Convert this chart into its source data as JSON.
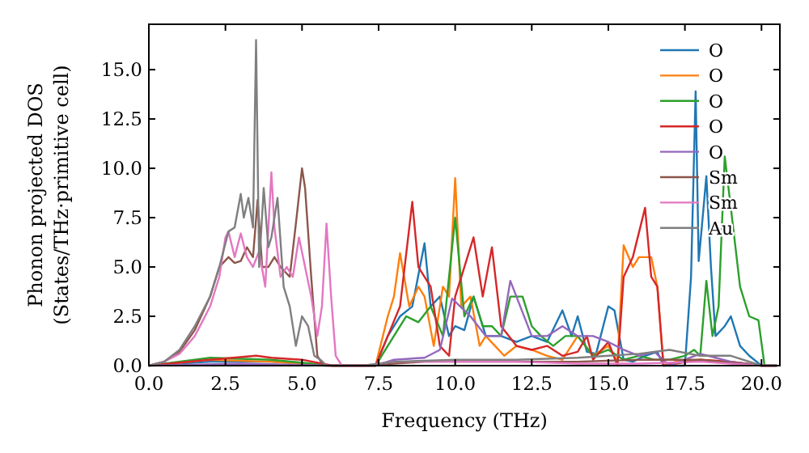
{
  "chart_data": {
    "type": "line",
    "xlabel": "Frequency (THz)",
    "ylabel": "Phonon projected DOS\n(States/THz·primitive cell)",
    "xlim": [
      0,
      20.6
    ],
    "ylim": [
      0,
      17.3
    ],
    "xticks": [
      {
        "value": 0,
        "label": "0.0"
      },
      2.5,
      {
        "value": 5,
        "label": "5.0"
      },
      7.5,
      {
        "value": 10,
        "label": "10.0"
      },
      12.5,
      {
        "value": 15,
        "label": "15.0"
      },
      17.5,
      {
        "value": 20,
        "label": "20.0"
      }
    ],
    "yticks": [
      {
        "value": 0,
        "label": "0.0"
      },
      2.5,
      {
        "value": 5,
        "label": "5.0"
      },
      7.5,
      {
        "value": 10,
        "label": "10.0"
      },
      12.5,
      {
        "value": 15,
        "label": "15.0"
      }
    ],
    "legend": "top right",
    "grid": false,
    "line_style": "solid",
    "series": [
      {
        "name": "O",
        "color": "#1f77b4",
        "x": [
          0,
          2,
          4,
          6,
          7.4,
          7.8,
          8.2,
          8.6,
          9.0,
          9.2,
          9.5,
          9.8,
          10.0,
          10.3,
          10.6,
          11,
          11.5,
          12,
          12.5,
          13,
          13.5,
          13.8,
          14,
          14.3,
          14.6,
          15,
          15.2,
          15.5,
          15.8,
          16.2,
          16.6,
          16.8,
          17.2,
          17.5,
          17.7,
          17.85,
          17.95,
          18.05,
          18.2,
          18.35,
          18.5,
          18.8,
          19.0,
          19.3,
          19.6,
          20.0,
          20.5
        ],
        "values": [
          0,
          0.2,
          0.2,
          0,
          0,
          1.5,
          2.5,
          3,
          6.2,
          3,
          3.5,
          1.5,
          2,
          1.8,
          3.5,
          1.5,
          1.5,
          1.2,
          1.5,
          1.2,
          2.8,
          1.5,
          2.5,
          0.7,
          0.6,
          3,
          2.8,
          0.3,
          0.2,
          0.5,
          0.7,
          0,
          0,
          0,
          4.5,
          13.9,
          5.3,
          7,
          9.6,
          5,
          1.5,
          2,
          2.5,
          1,
          0.5,
          0,
          0
        ]
      },
      {
        "name": "O",
        "color": "#ff7f0e",
        "x": [
          0,
          2,
          4,
          6,
          7.4,
          7.8,
          8.0,
          8.2,
          8.5,
          8.8,
          9.0,
          9.3,
          9.6,
          9.8,
          10.0,
          10.2,
          10.5,
          10.8,
          11.0,
          11.3,
          11.6,
          12,
          12.5,
          13,
          13.5,
          14,
          14.5,
          15,
          15.3,
          15.5,
          15.8,
          16.0,
          16.4,
          16.6,
          16.8,
          17.2,
          18,
          19,
          20,
          20.5
        ],
        "values": [
          0,
          0.3,
          0.2,
          0,
          0,
          2.5,
          3.5,
          5.7,
          3,
          4,
          3.5,
          1,
          4,
          3.5,
          9.5,
          3,
          3.5,
          1,
          1.5,
          1,
          0.5,
          1,
          0.8,
          0.5,
          0.3,
          1.5,
          0.5,
          1,
          0.2,
          6.1,
          5,
          5.5,
          5.5,
          4,
          0,
          0.2,
          0.3,
          0.2,
          0,
          0
        ]
      },
      {
        "name": "O",
        "color": "#2ca02c",
        "x": [
          0,
          2,
          4,
          6,
          7.4,
          8.0,
          8.4,
          8.8,
          9.2,
          9.6,
          10.0,
          10.3,
          10.6,
          10.9,
          11.2,
          11.5,
          11.8,
          12.2,
          12.5,
          12.8,
          13.2,
          13.6,
          14,
          14.5,
          15,
          15.5,
          16,
          16.5,
          17,
          17.5,
          17.8,
          18.0,
          18.2,
          18.4,
          18.6,
          18.8,
          19.0,
          19.3,
          19.6,
          19.9,
          20.1,
          20.5
        ],
        "values": [
          0,
          0.4,
          0.3,
          0,
          0,
          1.5,
          2.5,
          2.2,
          3,
          1.5,
          7.5,
          2.5,
          3.5,
          2,
          2,
          1.5,
          3.5,
          3.5,
          2,
          1.5,
          1,
          1.5,
          1.5,
          0.5,
          0.8,
          0.3,
          0.5,
          0.3,
          0.3,
          0.5,
          0.8,
          0.5,
          4.3,
          1.5,
          3,
          10.6,
          8,
          4,
          2.5,
          2.3,
          0,
          0
        ]
      },
      {
        "name": "O",
        "color": "#d62728",
        "x": [
          0,
          2,
          3.5,
          4,
          5,
          6,
          7.4,
          7.8,
          8.2,
          8.6,
          8.8,
          9.2,
          9.5,
          9.8,
          10.0,
          10.3,
          10.6,
          10.9,
          11.2,
          11.5,
          12,
          12.5,
          13,
          13.5,
          14,
          14.3,
          14.5,
          15,
          15.3,
          15.5,
          15.8,
          16.2,
          16.4,
          16.6,
          16.8,
          17.2,
          18,
          19,
          20,
          20.5
        ],
        "values": [
          0,
          0.3,
          0.5,
          0.4,
          0.3,
          0,
          0,
          1.5,
          3,
          8.3,
          5,
          4,
          1,
          0.5,
          3.5,
          5,
          6.5,
          3.5,
          6,
          2,
          1,
          0.8,
          1,
          0.5,
          0.7,
          1.5,
          0.3,
          1.2,
          0,
          4.5,
          5.5,
          8,
          4.5,
          4,
          0,
          0.1,
          0.3,
          0.2,
          0,
          0
        ]
      },
      {
        "name": "O",
        "color": "#9467bd",
        "x": [
          0,
          3,
          6,
          7.4,
          8,
          9,
          9.5,
          9.9,
          10.5,
          11,
          11.5,
          11.8,
          12.5,
          13,
          13.5,
          14,
          14.5,
          15,
          15.5,
          16,
          16.5,
          17,
          17.5,
          18,
          18.5,
          19,
          20,
          20.5
        ],
        "values": [
          0,
          0.1,
          0,
          0,
          0.3,
          0.4,
          0.8,
          3.4,
          2.5,
          1.5,
          1.5,
          4.3,
          1.5,
          1.5,
          2,
          1.5,
          1.5,
          1.2,
          0.8,
          0.5,
          0.7,
          0,
          0.3,
          0.6,
          0.4,
          0.2,
          0,
          0
        ]
      },
      {
        "name": "Sm",
        "color": "#8c564b",
        "x": [
          0,
          0.5,
          1,
          1.5,
          2,
          2.3,
          2.6,
          2.8,
          3.0,
          3.2,
          3.4,
          3.55,
          3.7,
          3.9,
          4.1,
          4.3,
          4.6,
          4.8,
          5.0,
          5.1,
          5.3,
          5.5,
          5.7,
          6,
          7,
          8,
          9,
          10,
          12,
          14,
          16,
          18,
          20,
          20.5
        ],
        "values": [
          0,
          0.2,
          0.7,
          1.8,
          3.5,
          5,
          5.5,
          5.2,
          5.3,
          6,
          5.5,
          8.4,
          5,
          5,
          5.5,
          5,
          4.5,
          7.2,
          10,
          9,
          4.5,
          0.5,
          0,
          0,
          0,
          0.1,
          0.2,
          0.2,
          0.2,
          0.2,
          0.3,
          0.3,
          0,
          0
        ]
      },
      {
        "name": "Sm",
        "color": "#e377c2",
        "x": [
          0,
          0.5,
          1,
          1.5,
          2,
          2.3,
          2.5,
          2.6,
          2.8,
          3.0,
          3.2,
          3.4,
          3.6,
          3.8,
          4.0,
          4.1,
          4.3,
          4.5,
          4.7,
          4.9,
          5.1,
          5.3,
          5.5,
          5.65,
          5.8,
          5.95,
          6.1,
          6.3,
          7,
          8,
          10,
          12,
          14,
          16,
          18,
          20,
          20.5
        ],
        "values": [
          0,
          0.2,
          0.6,
          1.5,
          3,
          4.5,
          6.5,
          6.8,
          5.5,
          6.7,
          5.5,
          5,
          5.8,
          4,
          9.8,
          7,
          4.5,
          5,
          4.5,
          6.5,
          5,
          3.5,
          1.5,
          3,
          7.2,
          3.5,
          0.5,
          0,
          0,
          0.2,
          0.2,
          0.2,
          0.1,
          0.1,
          0.2,
          0,
          0
        ]
      },
      {
        "name": "Au",
        "color": "#7f7f7f",
        "x": [
          0,
          0.5,
          1,
          1.5,
          2,
          2.3,
          2.6,
          2.8,
          3.0,
          3.1,
          3.25,
          3.4,
          3.5,
          3.6,
          3.75,
          3.9,
          4.0,
          4.2,
          4.4,
          4.6,
          4.8,
          5.0,
          5.2,
          5.4,
          5.6,
          5.8,
          6.0,
          7,
          8,
          10,
          12,
          14,
          16,
          17,
          18,
          19,
          20,
          20.5
        ],
        "values": [
          0,
          0.2,
          0.8,
          2,
          3.5,
          5,
          6.8,
          7,
          8.7,
          7.5,
          8.5,
          7,
          16.5,
          5,
          9,
          6,
          6.5,
          8.5,
          4,
          3,
          1,
          2.5,
          2,
          0.5,
          0.3,
          0,
          0,
          0,
          0.2,
          0.3,
          0.3,
          0.4,
          0.6,
          0.8,
          0.5,
          0.5,
          0,
          0
        ]
      }
    ]
  }
}
